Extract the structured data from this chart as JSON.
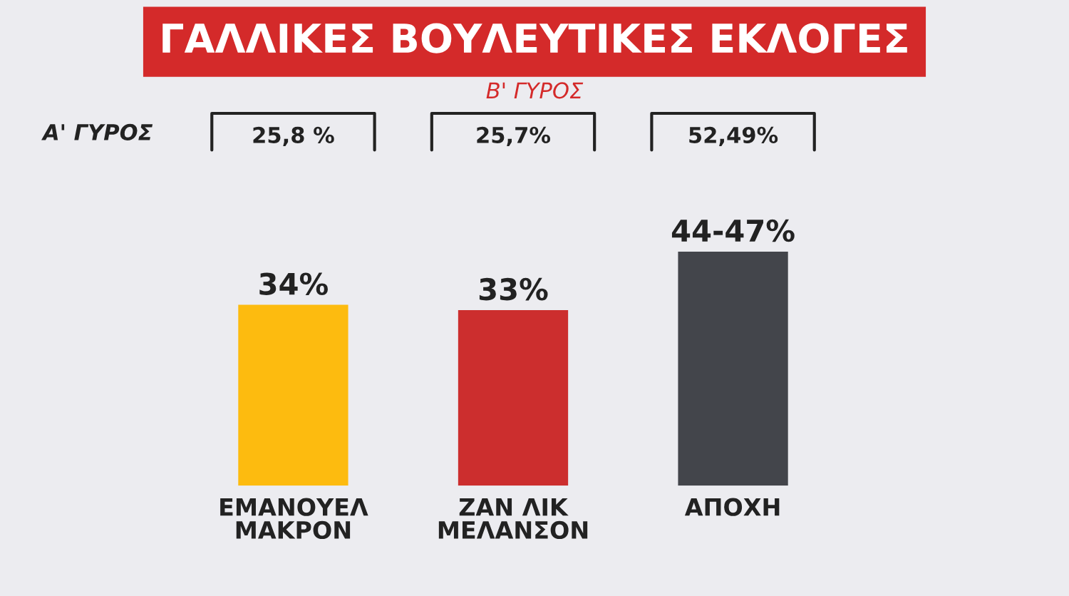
{
  "chart_data": {
    "type": "bar",
    "title": "ΓΑΛΛΙΚΕΣ ΒΟΥΛΕΥΤΙΚΕΣ ΕΚΛΟΓΕΣ",
    "subtitle": "Β' ΓΥΡΟΣ",
    "categories": [
      "ΕΜΑΝΟΥΕΛ\nΜΑΚΡΟΝ",
      "ΖΑΝ ΛΙΚ\nΜΕΛΑΝΣΟΝ",
      "ΑΠΟΧΗ"
    ],
    "values": [
      34,
      33,
      44
    ],
    "colors": [
      "#fdbb0f",
      "#cc2e2e",
      "#43454b"
    ],
    "value_labels": [
      "34%",
      "33%",
      "44-47%"
    ],
    "annotations": [
      "Α' ΓΥΡΟΣ",
      "25,8 %",
      "25,7%",
      "52,49%"
    ]
  }
}
